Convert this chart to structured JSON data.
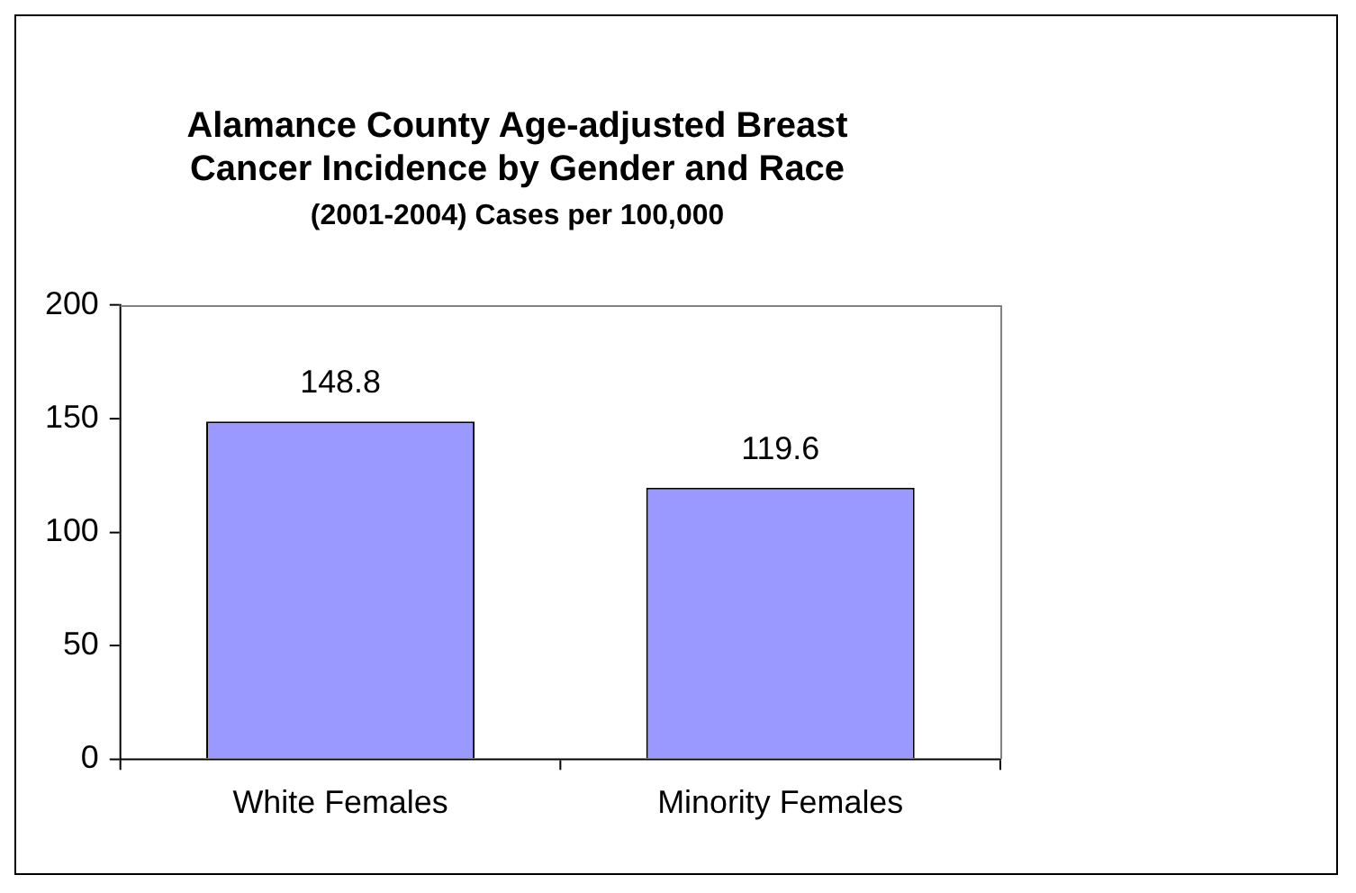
{
  "chart_data": {
    "type": "bar",
    "title": [
      "Alamance County Age-adjusted Breast",
      "Cancer Incidence by Gender and Race"
    ],
    "subtitle": "(2001-2004) Cases per 100,000",
    "categories": [
      "White Females",
      "Minority Females"
    ],
    "values": [
      148.8,
      119.6
    ],
    "color": "#9999ff",
    "ylim": [
      0,
      200
    ],
    "yticks": [
      0,
      50,
      100,
      150,
      200
    ],
    "grid": false,
    "data_labels": true,
    "legend": false
  }
}
